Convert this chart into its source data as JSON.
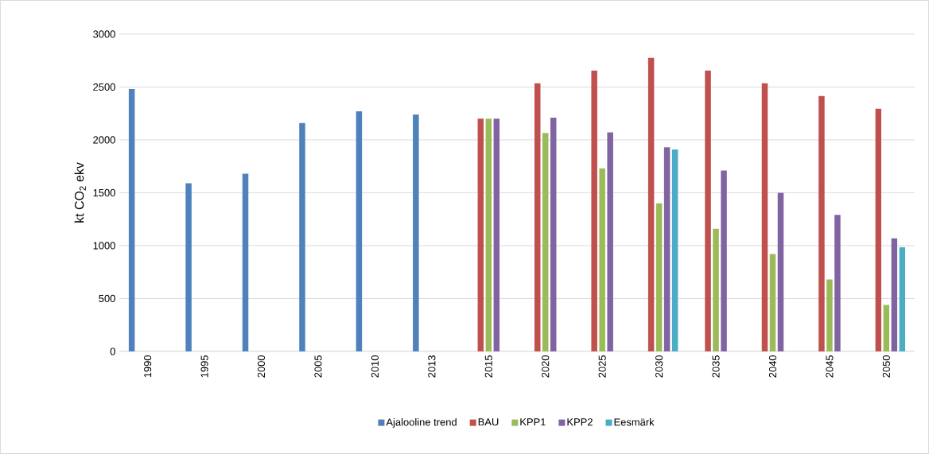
{
  "chart_data": {
    "type": "bar",
    "ylabel": "kt CO$_{2}$ ekv",
    "categories": [
      "1990",
      "1995",
      "2000",
      "2005",
      "2010",
      "2013",
      "2015",
      "2020",
      "2025",
      "2030",
      "2035",
      "2040",
      "2045",
      "2050"
    ],
    "series": [
      {
        "name": "Ajalooline trend",
        "color": "#4f81bd",
        "values": [
          2480,
          1590,
          1680,
          2160,
          2270,
          2240,
          null,
          null,
          null,
          null,
          null,
          null,
          null,
          null
        ]
      },
      {
        "name": "BAU",
        "color": "#c0504d",
        "values": [
          null,
          null,
          null,
          null,
          null,
          null,
          2200,
          2535,
          2655,
          2775,
          2655,
          2535,
          2415,
          2295
        ]
      },
      {
        "name": "KPP1",
        "color": "#9bbb59",
        "values": [
          null,
          null,
          null,
          null,
          null,
          null,
          2200,
          2065,
          1730,
          1400,
          1160,
          920,
          680,
          440
        ]
      },
      {
        "name": "KPP2",
        "color": "#8064a2",
        "values": [
          null,
          null,
          null,
          null,
          null,
          null,
          2200,
          2210,
          2070,
          1930,
          1710,
          1500,
          1290,
          1070
        ]
      },
      {
        "name": "Eesmärk",
        "color": "#4bacc6",
        "values": [
          null,
          null,
          null,
          null,
          null,
          null,
          null,
          null,
          null,
          1910,
          null,
          null,
          null,
          985
        ]
      }
    ],
    "ylim": [
      0,
      3000
    ],
    "yticks": [
      0,
      500,
      1000,
      1500,
      2000,
      2500,
      3000
    ],
    "grid": "y",
    "legend": "bottom"
  }
}
